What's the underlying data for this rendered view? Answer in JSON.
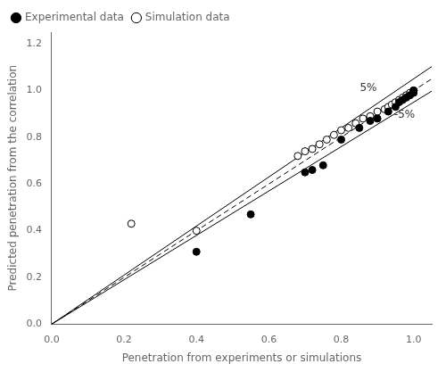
{
  "chart_data": {
    "type": "scatter",
    "xlabel": "Penetration from experiments or simulations",
    "ylabel": "Predicted penetration from the correlation",
    "xlim": [
      0.0,
      1.05
    ],
    "ylim": [
      0.0,
      1.25
    ],
    "xticks": [
      {
        "value": 0.0,
        "label": "0.0"
      },
      0.2,
      0.4,
      0.6,
      0.8,
      {
        "value": 1.0,
        "label": "1.0"
      }
    ],
    "yticks": [
      {
        "value": 0.0,
        "label": "0.0"
      },
      0.2,
      0.4,
      0.6,
      0.8,
      {
        "value": 1.0,
        "label": "1.0"
      },
      1.2
    ],
    "grid": false,
    "legend": "upper left",
    "series": [
      {
        "name": "Experimental data",
        "type": "scatter",
        "marker": "circle",
        "color": "black",
        "x": [
          0.4,
          0.55,
          0.7,
          0.72,
          0.75,
          0.8,
          0.85,
          0.88,
          0.9,
          0.93,
          0.95,
          0.96,
          0.97,
          0.98,
          0.99,
          1.0,
          1.0
        ],
        "values": [
          0.31,
          0.47,
          0.65,
          0.66,
          0.68,
          0.79,
          0.84,
          0.87,
          0.88,
          0.91,
          0.93,
          0.95,
          0.96,
          0.97,
          0.98,
          0.99,
          1.0
        ]
      },
      {
        "name": "Simulation data",
        "type": "scatter",
        "marker": "open circle",
        "color": "black",
        "x": [
          0.22,
          0.4,
          0.68,
          0.7,
          0.72,
          0.74,
          0.76,
          0.78,
          0.8,
          0.82,
          0.84,
          0.86,
          0.88,
          0.9,
          0.92,
          0.93,
          0.94,
          0.95,
          0.96,
          0.97,
          0.98,
          0.99,
          1.0,
          1.0
        ],
        "values": [
          0.43,
          0.4,
          0.72,
          0.74,
          0.75,
          0.77,
          0.79,
          0.81,
          0.83,
          0.84,
          0.86,
          0.88,
          0.89,
          0.91,
          0.92,
          0.93,
          0.94,
          0.95,
          0.96,
          0.97,
          0.98,
          0.99,
          1.0,
          1.0
        ]
      },
      {
        "type": "line",
        "line_style": "dashed",
        "color": "black",
        "x": [
          0.0,
          1.05
        ],
        "values": [
          0.0,
          1.05
        ]
      },
      {
        "type": "line",
        "line_style": "solid",
        "color": "black",
        "x": [
          0.0,
          1.05
        ],
        "values": [
          0.0,
          1.1025
        ]
      },
      {
        "type": "line",
        "line_style": "solid",
        "color": "black",
        "x": [
          0.0,
          1.05
        ],
        "values": [
          0.0,
          0.9975
        ]
      }
    ],
    "annotations": [
      {
        "text": "5%",
        "x": 0.875,
        "y": 1.01
      },
      {
        "text": "-5%",
        "x": 0.975,
        "y": 0.895
      }
    ]
  }
}
